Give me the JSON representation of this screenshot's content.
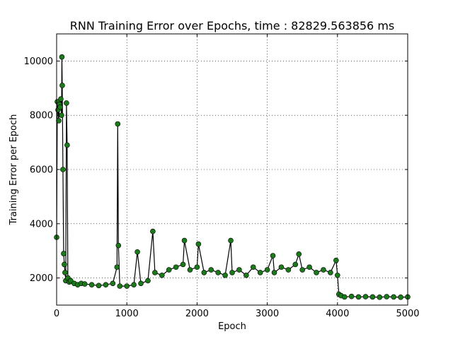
{
  "chart_data": {
    "type": "line",
    "title": "RNN Training Error over Epochs, time : 82829.563856 ms",
    "xlabel": "Epoch",
    "ylabel": "Training Error per Epoch",
    "xlim": [
      0,
      5000
    ],
    "ylim": [
      1000,
      11000
    ],
    "x_ticks": [
      0,
      1000,
      2000,
      3000,
      4000,
      5000
    ],
    "y_ticks": [
      2000,
      4000,
      6000,
      8000,
      10000
    ],
    "x_tick_labels": [
      "0",
      "1000",
      "2000",
      "3000",
      "4000",
      "5000"
    ],
    "y_tick_labels": [
      "2000",
      "4000",
      "6000",
      "8000",
      "10000"
    ],
    "grid": true,
    "line_color": "#000000",
    "marker_color": "#1a7a1a",
    "series": [
      {
        "name": "",
        "x": [
          0,
          10,
          20,
          30,
          40,
          50,
          60,
          70,
          75,
          80,
          90,
          100,
          110,
          120,
          130,
          140,
          150,
          160,
          180,
          200,
          250,
          300,
          350,
          400,
          500,
          600,
          700,
          800,
          860,
          870,
          880,
          900,
          1000,
          1100,
          1150,
          1200,
          1300,
          1370,
          1400,
          1500,
          1600,
          1700,
          1800,
          1820,
          1900,
          2000,
          2020,
          2100,
          2200,
          2300,
          2400,
          2480,
          2500,
          2600,
          2700,
          2800,
          2900,
          3000,
          3080,
          3100,
          3200,
          3300,
          3400,
          3450,
          3500,
          3600,
          3700,
          3800,
          3900,
          3980,
          4000,
          4020,
          4050,
          4100,
          4200,
          4300,
          4400,
          4500,
          4600,
          4700,
          4800,
          4900,
          5000
        ],
        "y": [
          3500,
          8500,
          8200,
          7800,
          8400,
          8300,
          8600,
          8000,
          10150,
          9100,
          6000,
          2900,
          2500,
          2200,
          1900,
          8450,
          6900,
          2000,
          1850,
          1900,
          1800,
          1750,
          1800,
          1780,
          1750,
          1720,
          1750,
          1800,
          2400,
          7680,
          3200,
          1700,
          1700,
          1750,
          2960,
          1800,
          1900,
          3720,
          2200,
          2100,
          2300,
          2400,
          2500,
          3380,
          2300,
          2400,
          3250,
          2200,
          2300,
          2200,
          2100,
          3380,
          2200,
          2300,
          2100,
          2400,
          2200,
          2300,
          2820,
          2200,
          2400,
          2300,
          2500,
          2880,
          2300,
          2400,
          2200,
          2300,
          2200,
          2650,
          2100,
          1400,
          1350,
          1300,
          1320,
          1300,
          1310,
          1300,
          1290,
          1310,
          1300,
          1290,
          1300
        ]
      }
    ]
  }
}
